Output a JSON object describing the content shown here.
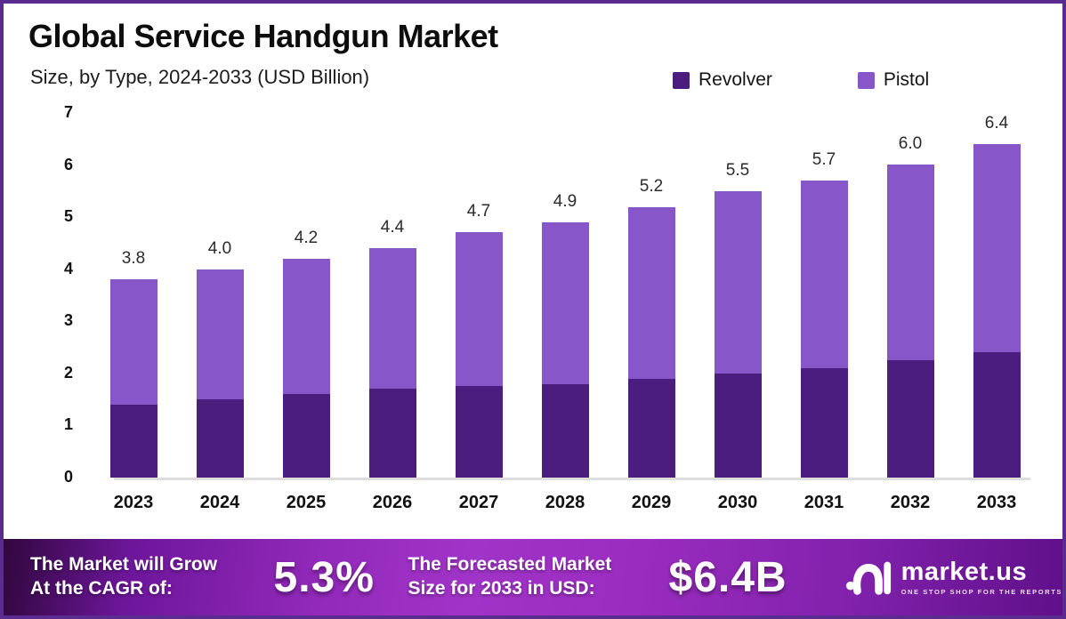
{
  "header": {
    "title": "Global Service Handgun Market",
    "subtitle": "Size, by Type, 2024-2033 (USD Billion)"
  },
  "colors": {
    "revolver": "#4a1d7f",
    "pistol": "#8757c9",
    "border": "#5b2c90",
    "banner_gradient_start": "#30073d",
    "banner_gradient_mid": "#a134c8",
    "banner_gradient_end": "#60108a"
  },
  "legend": [
    {
      "label": "Revolver",
      "color": "#4a1d7f"
    },
    {
      "label": "Pistol",
      "color": "#8757c9"
    }
  ],
  "chart_data": {
    "type": "bar",
    "stacked": true,
    "title": "Global Service Handgun Market",
    "subtitle": "Size, by Type, 2024-2033 (USD Billion)",
    "xlabel": "",
    "ylabel": "USD Billion",
    "categories": [
      "2023",
      "2024",
      "2025",
      "2026",
      "2027",
      "2028",
      "2029",
      "2030",
      "2031",
      "2032",
      "2033"
    ],
    "series": [
      {
        "name": "Revolver",
        "color": "#4a1d7f",
        "values": [
          1.4,
          1.5,
          1.6,
          1.7,
          1.75,
          1.8,
          1.9,
          2.0,
          2.1,
          2.25,
          2.4
        ]
      },
      {
        "name": "Pistol",
        "color": "#8757c9",
        "values": [
          2.4,
          2.5,
          2.6,
          2.7,
          2.95,
          3.1,
          3.3,
          3.5,
          3.6,
          3.75,
          4.0
        ]
      }
    ],
    "totals": [
      3.8,
      4.0,
      4.2,
      4.4,
      4.7,
      4.9,
      5.2,
      5.5,
      5.7,
      6.0,
      6.4
    ],
    "total_labels": [
      "3.8",
      "4.0",
      "4.2",
      "4.4",
      "4.7",
      "4.9",
      "5.2",
      "5.5",
      "5.7",
      "6.0",
      "6.4"
    ],
    "ylim": [
      0,
      7
    ],
    "yticks": [
      "0",
      "1",
      "2",
      "3",
      "4",
      "5",
      "6",
      "7"
    ],
    "grid": false,
    "legend_position": "top-right"
  },
  "banner": {
    "cagr_caption_line1": "The Market will Grow",
    "cagr_caption_line2": "At the CAGR of:",
    "cagr_value": "5.3%",
    "forecast_caption_line1": "The Forecasted Market",
    "forecast_caption_line2": "Size for 2033 in USD:",
    "forecast_value": "$6.4B",
    "logo_text": "market.us",
    "logo_tagline": "ONE STOP SHOP FOR THE REPORTS"
  }
}
